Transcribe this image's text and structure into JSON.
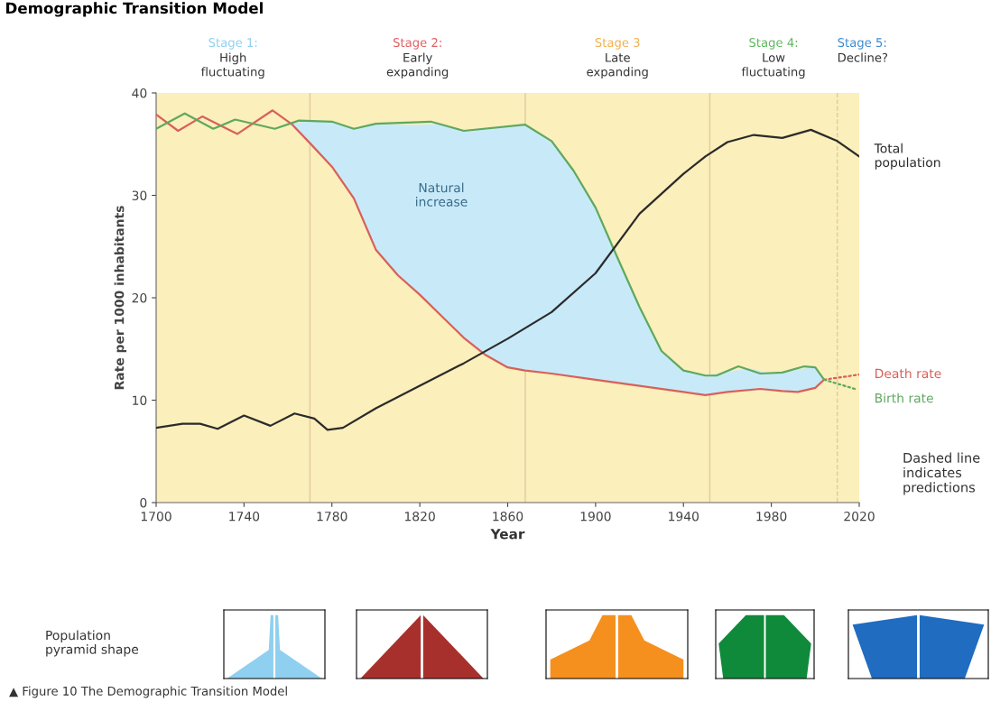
{
  "chart_data": {
    "type": "line",
    "title": "Demographic Transition Model",
    "xlabel": "Year",
    "ylabel": "Rate per 1000 inhabitants",
    "xlim": [
      1700,
      2020
    ],
    "ylim": [
      0,
      40
    ],
    "xticks": [
      1700,
      1740,
      1780,
      1820,
      1860,
      1900,
      1940,
      1980,
      2020
    ],
    "yticks": [
      0,
      10,
      20,
      30,
      40
    ],
    "grid": false,
    "legend": false,
    "bands": [
      {
        "axis": "x",
        "from": 1700,
        "to": 1770,
        "label": "Stage 1:\nHigh\nfluctuating",
        "color": "#fbefbb"
      },
      {
        "axis": "x",
        "from": 1770,
        "to": 1868,
        "label": "Stage 2:\nEarly\nexpanding",
        "color": "#fbefbb"
      },
      {
        "axis": "x",
        "from": 1868,
        "to": 1952,
        "label": "Stage 3\nLate\nexpanding",
        "color": "#fbefbb"
      },
      {
        "axis": "x",
        "from": 1952,
        "to": 2010,
        "label": "Stage 4:\nLow\nfluctuating",
        "color": "#fbefbb"
      },
      {
        "axis": "x",
        "from": 2010,
        "to": 2020,
        "label": "Stage 5:\nDecline?",
        "color": "#fbefbb"
      }
    ],
    "ref_lines": [
      {
        "axis": "x",
        "value": 1770,
        "color": "#e3c9a2",
        "line_style": "solid"
      },
      {
        "axis": "x",
        "value": 1868,
        "color": "#e3c9a2",
        "line_style": "solid"
      },
      {
        "axis": "x",
        "value": 1952,
        "color": "#e3c9a2",
        "line_style": "solid"
      },
      {
        "axis": "x",
        "value": 2010,
        "color": "#e3c9a2",
        "line_style": "dashed"
      }
    ],
    "series": [
      {
        "type": "area",
        "color": "#c8eaf8",
        "x": [
          1762,
          1770,
          1780,
          1790,
          1800,
          1810,
          1820,
          1830,
          1840,
          1850,
          1860,
          1868,
          1880,
          1890,
          1900,
          1910,
          1920,
          1930,
          1940,
          1950,
          1960,
          1970,
          1980,
          1990,
          2000,
          2004
        ],
        "values": [
          37.0,
          37.3,
          37.2,
          36.5,
          37.0,
          36.9,
          36.9,
          37.0,
          36.3,
          36.5,
          36.8,
          36.9,
          35.3,
          32.4,
          28.8,
          23.9,
          19.1,
          14.8,
          12.9,
          12.4,
          12.8,
          13.1,
          12.6,
          13.0,
          13.2,
          12.0
        ]
      },
      {
        "name": "Death rate",
        "color": "#d8605a",
        "line_style": "solid",
        "x": [
          1700,
          1710,
          1721,
          1737,
          1753,
          1762,
          1770,
          1780,
          1790,
          1800,
          1810,
          1820,
          1830,
          1840,
          1850,
          1860,
          1868,
          1880,
          1900,
          1920,
          1940,
          1950,
          1960,
          1975,
          1985,
          1992,
          2000,
          2004
        ],
        "values": [
          37.9,
          36.3,
          37.7,
          36.0,
          38.3,
          36.9,
          35.1,
          32.8,
          29.7,
          24.7,
          22.2,
          20.3,
          18.2,
          16.1,
          14.4,
          13.2,
          12.9,
          12.6,
          12.0,
          11.4,
          10.8,
          10.5,
          10.8,
          11.1,
          10.9,
          10.8,
          11.2,
          12.0
        ]
      },
      {
        "color": "#d8605a",
        "line_style": "dotted",
        "x": [
          2004,
          2020
        ],
        "values": [
          12.0,
          12.5
        ]
      },
      {
        "name": "Birth rate",
        "color": "#5fa85f",
        "line_style": "solid",
        "x": [
          1700,
          1713,
          1726,
          1736,
          1754,
          1765,
          1780,
          1790,
          1800,
          1825,
          1840,
          1868,
          1880,
          1890,
          1900,
          1910,
          1920,
          1930,
          1940,
          1950,
          1955,
          1965,
          1975,
          1985,
          1995,
          2000,
          2004
        ],
        "values": [
          36.5,
          38.0,
          36.5,
          37.4,
          36.5,
          37.3,
          37.2,
          36.5,
          37.0,
          37.2,
          36.3,
          36.9,
          35.3,
          32.4,
          28.8,
          23.9,
          19.1,
          14.8,
          12.9,
          12.4,
          12.4,
          13.3,
          12.6,
          12.7,
          13.3,
          13.2,
          12.0
        ]
      },
      {
        "color": "#5fa85f",
        "line_style": "dotted",
        "x": [
          2004,
          2018
        ],
        "values": [
          12.0,
          11.1
        ]
      },
      {
        "name": "Total population",
        "color": "#2b2b2b",
        "line_style": "solid",
        "x": [
          1700,
          1712,
          1720,
          1728,
          1740,
          1752,
          1763,
          1772,
          1778,
          1785,
          1800,
          1820,
          1840,
          1860,
          1880,
          1900,
          1920,
          1940,
          1950,
          1960,
          1972,
          1985,
          1998,
          2010,
          2020
        ],
        "values": [
          7.3,
          7.7,
          7.7,
          7.2,
          8.5,
          7.5,
          8.7,
          8.2,
          7.1,
          7.3,
          9.2,
          11.4,
          13.6,
          16.0,
          18.6,
          22.4,
          28.2,
          32.1,
          33.8,
          35.2,
          35.9,
          35.6,
          36.4,
          35.3,
          33.8
        ]
      }
    ],
    "annotations": [
      "Natural\nincrease",
      "Dashed line\nindicates\npredictions",
      "Population\npyramid shape",
      "▲ Figure 10 The Demographic Transition Model"
    ]
  }
}
